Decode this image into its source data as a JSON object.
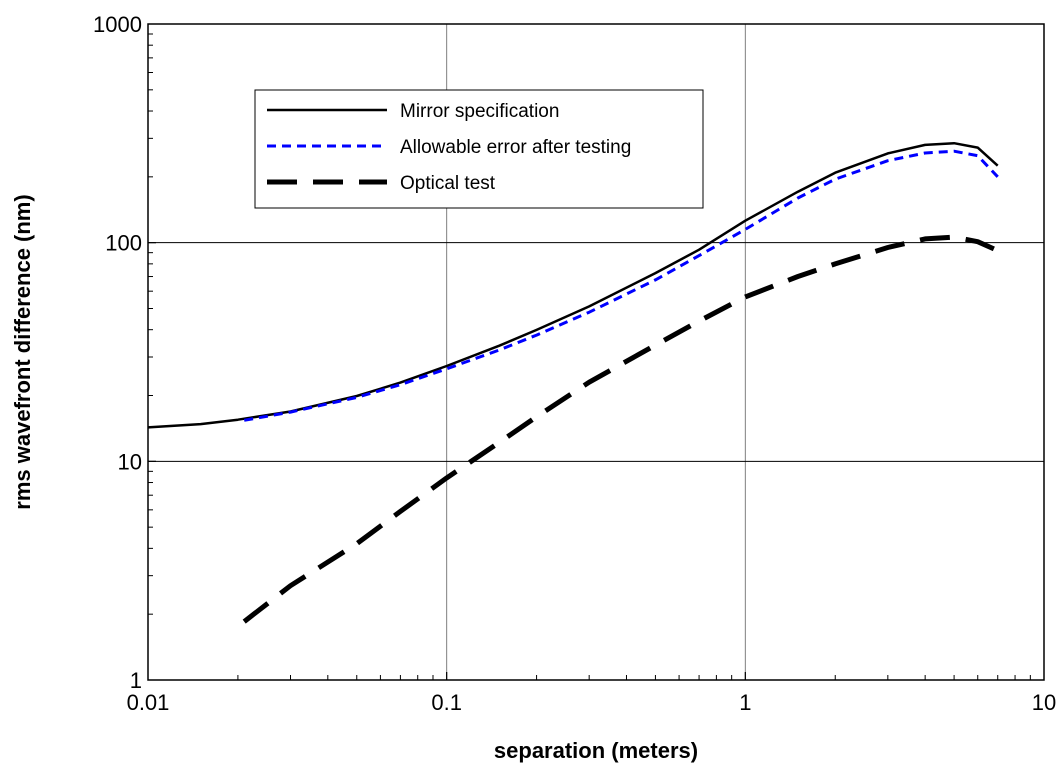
{
  "chart_data": {
    "type": "line",
    "title": "",
    "xlabel": "separation (meters)",
    "ylabel": "rms wavefront difference (nm)",
    "x_scale": "log",
    "y_scale": "log",
    "xlim": [
      0.01,
      10
    ],
    "ylim": [
      1,
      1000
    ],
    "x_ticks": [
      0.01,
      0.1,
      1,
      10
    ],
    "x_tick_labels": [
      "0.01",
      "0.1",
      "1",
      "10"
    ],
    "y_ticks": [
      1,
      10,
      100,
      1000
    ],
    "y_tick_labels": [
      "1",
      "10",
      "100",
      "1000"
    ],
    "grid": true,
    "legend_position": "top-left",
    "series": [
      {
        "name": "Mirror specification",
        "color": "#000000",
        "style": "solid",
        "x": [
          0.01,
          0.015,
          0.02,
          0.03,
          0.05,
          0.07,
          0.1,
          0.15,
          0.2,
          0.3,
          0.5,
          0.7,
          1,
          1.5,
          2,
          3,
          4,
          5,
          6,
          7
        ],
        "y": [
          14.3,
          14.8,
          15.5,
          16.9,
          19.9,
          22.9,
          27.3,
          33.8,
          39.9,
          51.1,
          72.6,
          92.9,
          126,
          171,
          209,
          256,
          280,
          285,
          272,
          225
        ]
      },
      {
        "name": "Allowable error after testing",
        "color": "#0000ff",
        "style": "dashed",
        "x": [
          0.021,
          0.03,
          0.05,
          0.07,
          0.1,
          0.15,
          0.2,
          0.3,
          0.5,
          0.7,
          1,
          1.5,
          2,
          3,
          4,
          5,
          6,
          7
        ],
        "y": [
          15.4,
          16.8,
          19.6,
          22.4,
          26.5,
          32.3,
          37.8,
          48.1,
          67.6,
          87.3,
          115,
          160,
          195,
          237,
          257,
          262,
          250,
          200
        ]
      },
      {
        "name": "Optical test",
        "color": "#000000",
        "style": "long-dash",
        "x": [
          0.021,
          0.03,
          0.05,
          0.07,
          0.1,
          0.15,
          0.2,
          0.3,
          0.5,
          0.7,
          1,
          1.5,
          2,
          3,
          4,
          5,
          6,
          7
        ],
        "y": [
          1.85,
          2.7,
          4.2,
          5.9,
          8.4,
          12.2,
          16,
          23,
          34,
          43.8,
          56.5,
          70,
          80,
          95,
          104,
          106,
          101,
          92
        ]
      }
    ]
  }
}
